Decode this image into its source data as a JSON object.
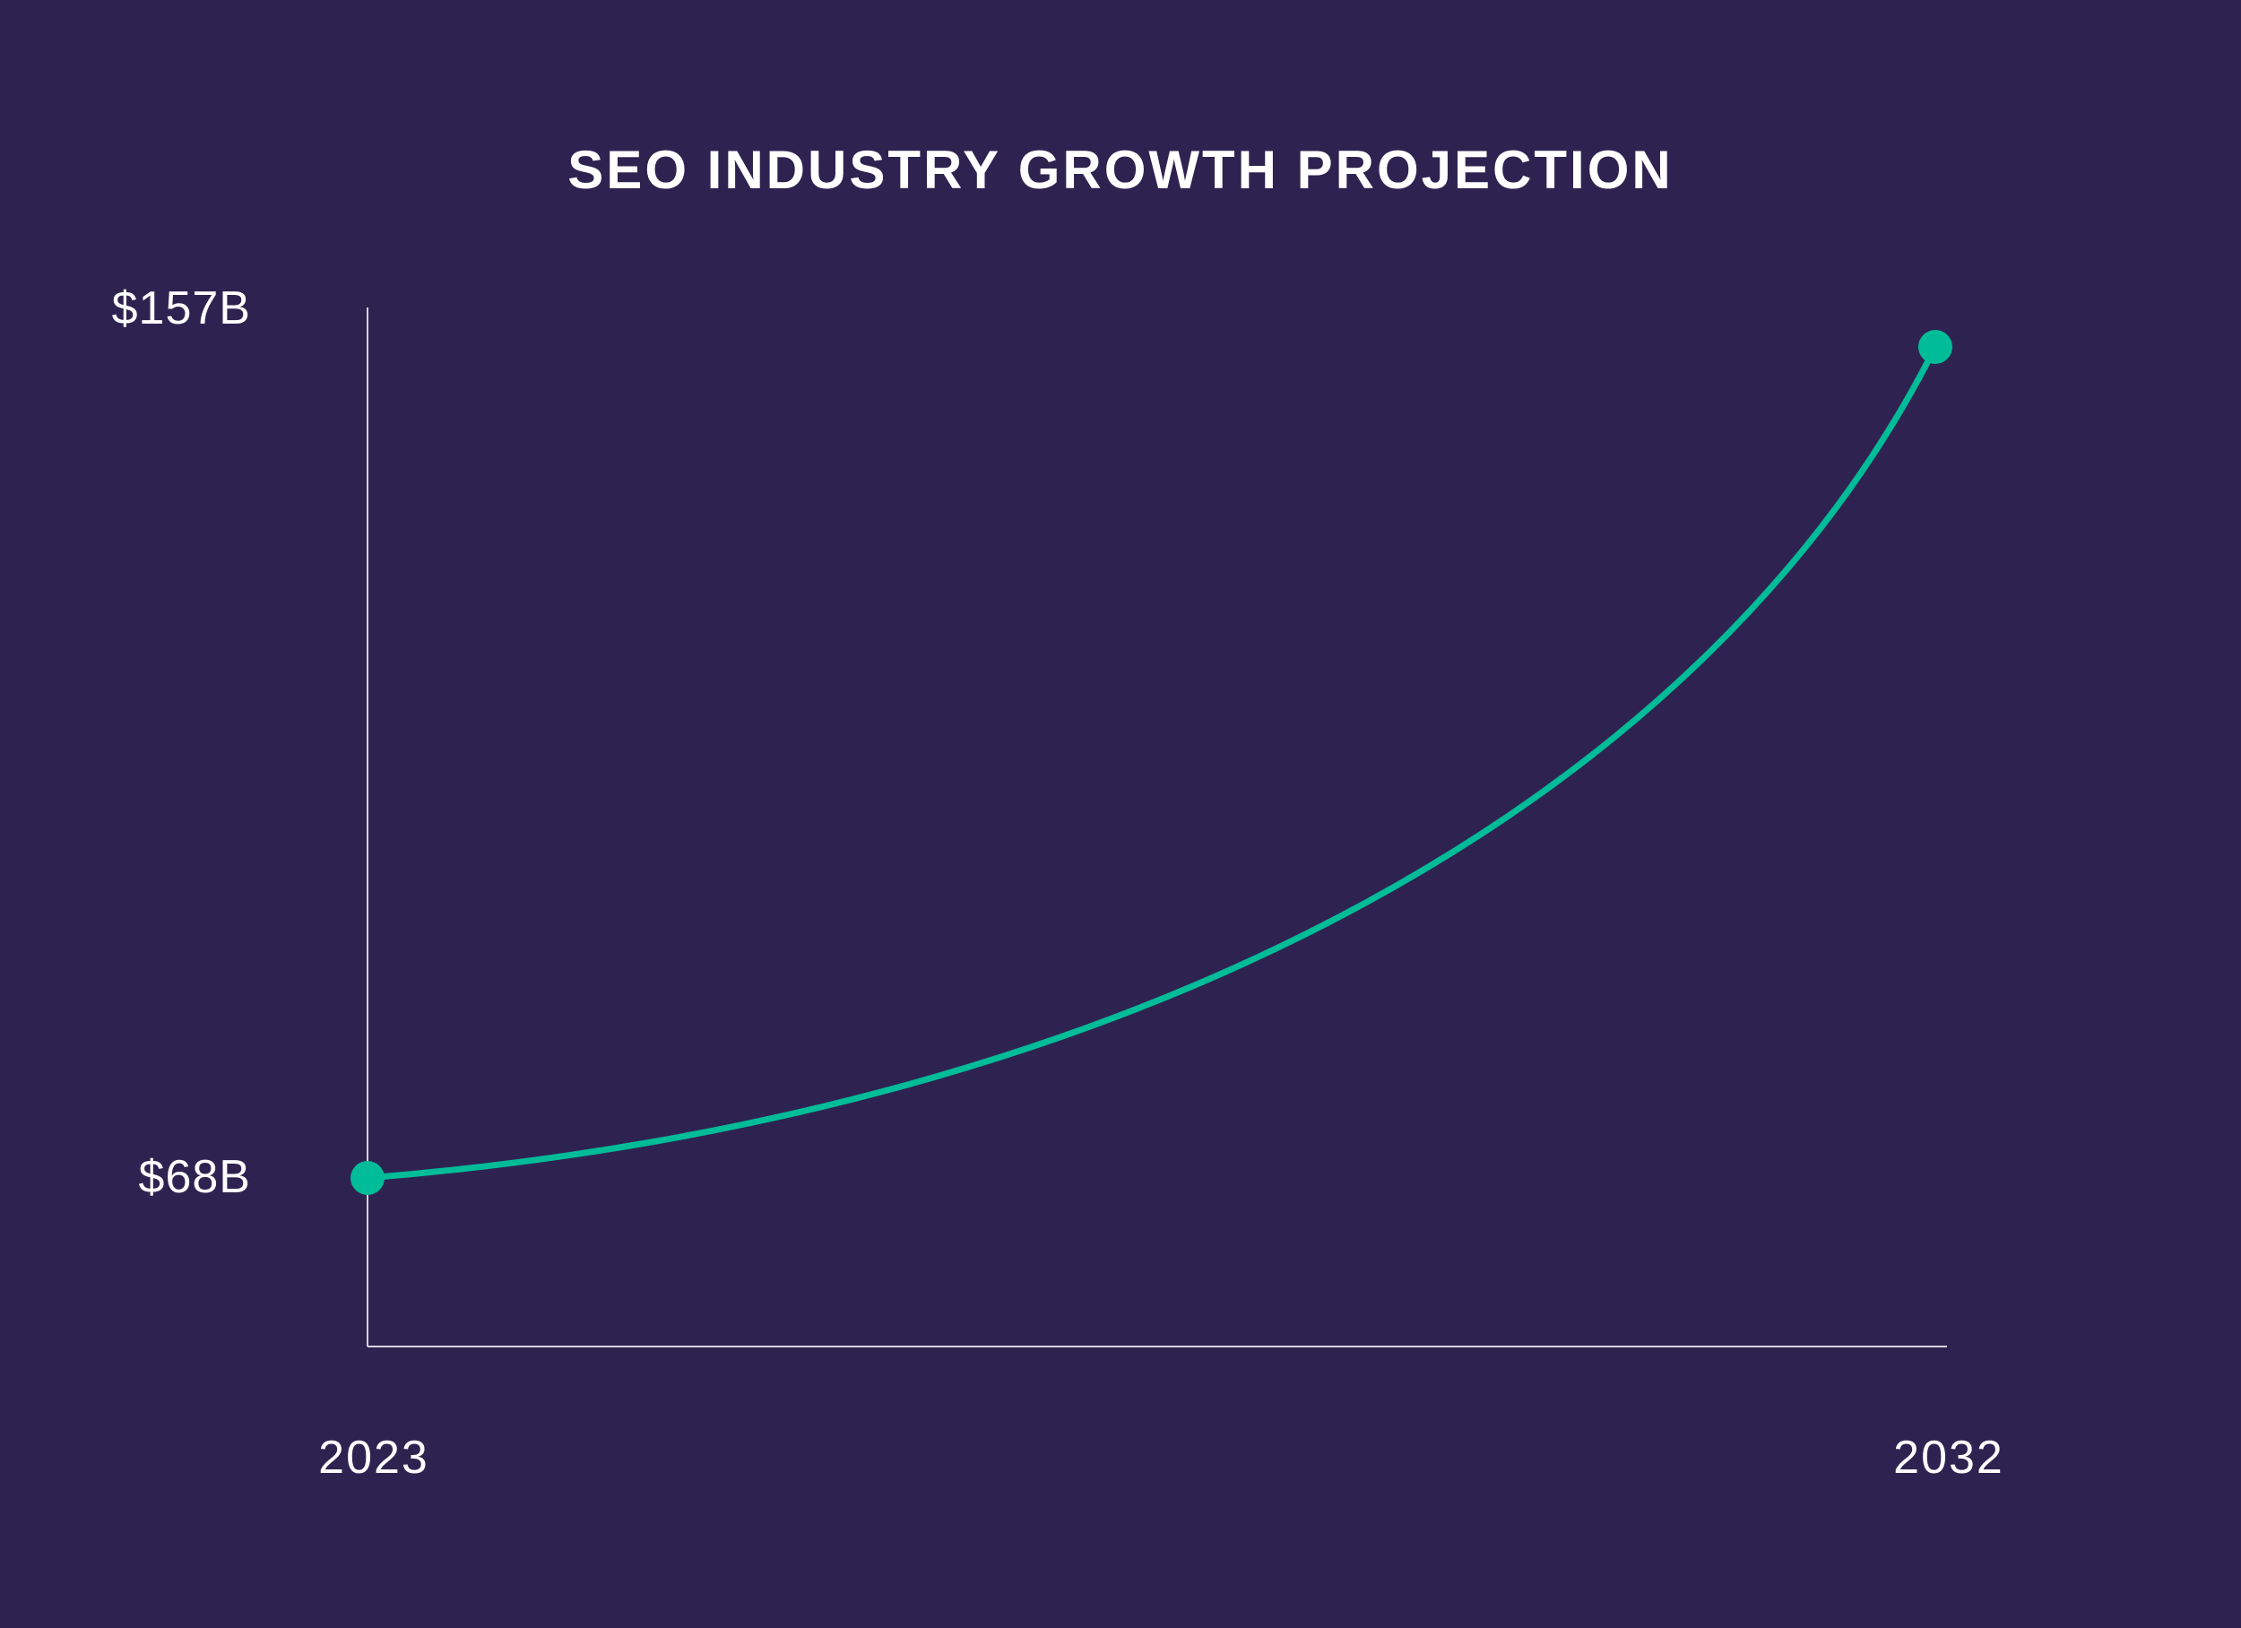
{
  "chart_data": {
    "type": "line",
    "title": "SEO INDUSTRY GROWTH PROJECTION",
    "x": [
      "2023",
      "2032"
    ],
    "series": [
      {
        "values": [
          68,
          157
        ]
      }
    ],
    "y_tick_labels": [
      "$157B",
      "$68B"
    ],
    "x_tick_labels": [
      "2023",
      "2032"
    ],
    "curve": "exponential",
    "grid": false,
    "legend": "none",
    "colors": {
      "background": "#2e2350",
      "line": "#00bc98",
      "axis": "#d8d4e4",
      "text": "#ffffff"
    }
  }
}
